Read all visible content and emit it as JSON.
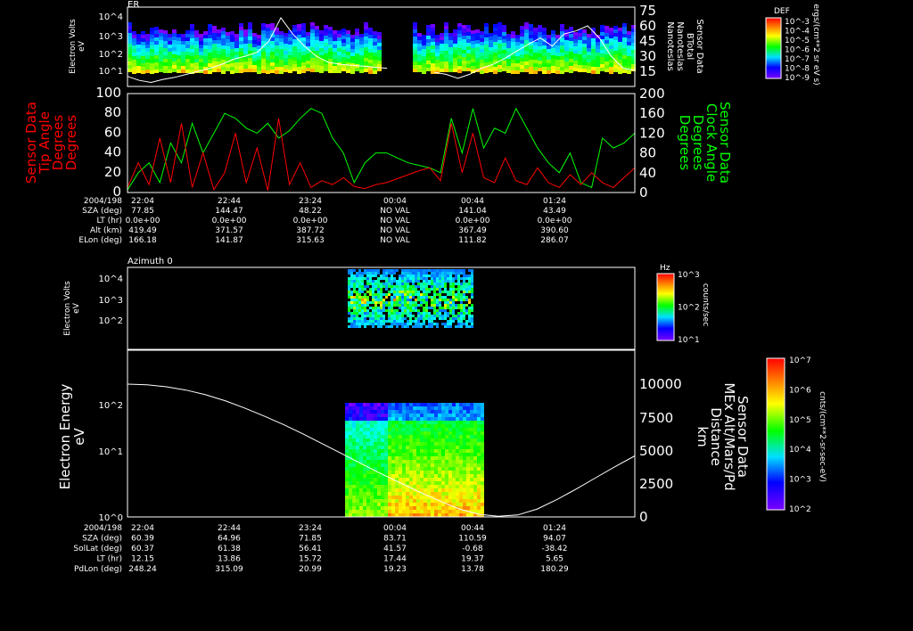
{
  "panel1": {
    "title": "ER",
    "ylabel": [
      "Electron Volts",
      "eV"
    ],
    "yticks": [
      "10^4",
      "10^3",
      "10^2",
      "10^1"
    ],
    "right_ticks": [
      "75",
      "60",
      "45",
      "30",
      "15"
    ],
    "right_label": [
      "Sensor Data",
      "BTotal",
      "Nanoteslas",
      "Nanoteslas"
    ],
    "colorbar": {
      "title": "DEF",
      "ticks": [
        "10^-3",
        "10^-4",
        "10^-5",
        "10^-6",
        "10^-7",
        "10^-8",
        "10^-9"
      ],
      "unit": "ergs/(cm**2 sr eV s)"
    },
    "btotal_nT": [
      10,
      6,
      4,
      7,
      9,
      12,
      15,
      18,
      22,
      27,
      30,
      34,
      45,
      68,
      52,
      40,
      30,
      24,
      22,
      21,
      20,
      19,
      18,
      null,
      null,
      null,
      14,
      12,
      8,
      12,
      18,
      22,
      28,
      35,
      42,
      48,
      40,
      52,
      55,
      60,
      48,
      30,
      18,
      16
    ]
  },
  "panel2": {
    "left_label": [
      "Sensor Data",
      "Tip Angle",
      "Degrees",
      "Degrees"
    ],
    "right_label": [
      "Sensor Data",
      "Clock Angle",
      "Degrees",
      "Degrees"
    ],
    "left_ticks": [
      "100",
      "80",
      "60",
      "40",
      "20",
      "0"
    ],
    "right_ticks": [
      "200",
      "160",
      "120",
      "80",
      "40",
      "0"
    ],
    "tip_deg": [
      5,
      30,
      8,
      55,
      10,
      70,
      5,
      40,
      3,
      20,
      60,
      10,
      45,
      2,
      75,
      8,
      30,
      5,
      12,
      8,
      15,
      6,
      4,
      8,
      10,
      14,
      18,
      22,
      25,
      12,
      70,
      20,
      60,
      15,
      10,
      35,
      12,
      8,
      25,
      10,
      5,
      18,
      8,
      20,
      10,
      5,
      15,
      25
    ],
    "clock_deg": [
      5,
      40,
      60,
      20,
      100,
      60,
      140,
      80,
      120,
      160,
      150,
      130,
      120,
      140,
      110,
      125,
      150,
      170,
      160,
      110,
      80,
      20,
      60,
      80,
      80,
      70,
      60,
      55,
      50,
      40,
      150,
      80,
      170,
      90,
      130,
      120,
      170,
      130,
      90,
      60,
      40,
      80,
      20,
      10,
      110,
      90,
      100,
      120
    ],
    "colors": {
      "tip": "#ff0000",
      "clock": "#00ff00"
    }
  },
  "table1": {
    "row_labels": [
      "2004/198",
      "SZA (deg)",
      "LT (hr)",
      "Alt (km)",
      "ELon (deg)"
    ],
    "columns": [
      [
        "22:04",
        "77.85",
        "0.0e+00",
        "419.49",
        "166.18"
      ],
      [
        "22:44",
        "144.47",
        "0.0e+00",
        "371.57",
        "141.87"
      ],
      [
        "23:24",
        "48.22",
        "0.0e+00",
        "387.72",
        "315.63"
      ],
      [
        "00:04",
        "NO VAL",
        "NO VAL",
        "NO VAL",
        "NO VAL"
      ],
      [
        "00:44",
        "141.04",
        "0.0e+00",
        "367.49",
        "111.82"
      ],
      [
        "01:24",
        "43.49",
        "0.0e+00",
        "390.60",
        "286.07"
      ]
    ]
  },
  "panel3": {
    "title": "Azimuth 0",
    "ylabel": [
      "Electron Volts",
      "eV"
    ],
    "yticks": [
      "10^4",
      "10^3",
      "10^2"
    ],
    "colorbar": {
      "title": "Hz",
      "ticks": [
        "10^3",
        "10^2",
        "10^1"
      ],
      "unit": "counts/sec"
    }
  },
  "panel4": {
    "ylabel": [
      "Electron Energy",
      "eV"
    ],
    "yticks": [
      "10^2",
      "10^1",
      "10^0"
    ],
    "right_ticks": [
      "10000",
      "7500",
      "5000",
      "2500",
      "0"
    ],
    "right_label": [
      "Sensor Data",
      "MEx Alt/Mars/Pd",
      "Distance",
      "km"
    ],
    "colorbar": {
      "ticks": [
        "10^7",
        "10^6",
        "10^5",
        "10^4",
        "10^3",
        "10^2"
      ],
      "unit": "cnts/(cm**2-sr-sec-eV)"
    },
    "altitude_km": [
      10000,
      9950,
      9800,
      9550,
      9200,
      8750,
      8200,
      7600,
      6950,
      6250,
      5500,
      4750,
      4000,
      3250,
      2550,
      1850,
      1200,
      600,
      200,
      50,
      150,
      600,
      1300,
      2100,
      2950,
      3800,
      4600
    ]
  },
  "table2": {
    "row_labels": [
      "2004/198",
      "SZA (deg)",
      "SolLat (deg)",
      "LT (hr)",
      "PdLon (deg)"
    ],
    "columns": [
      [
        "22:04",
        "60.39",
        "60.37",
        "12.15",
        "248.24"
      ],
      [
        "22:44",
        "64.96",
        "61.38",
        "13.86",
        "315.09"
      ],
      [
        "23:24",
        "71.85",
        "56.41",
        "15.72",
        "20.99"
      ],
      [
        "00:04",
        "83.71",
        "41.57",
        "17.44",
        "19.23"
      ],
      [
        "00:44",
        "110.59",
        "-0.68",
        "19.37",
        "13.78"
      ],
      [
        "01:24",
        "94.07",
        "-38.42",
        "5.65",
        "180.29"
      ]
    ]
  },
  "chart_data": [
    {
      "type": "heatmap",
      "title": "ER",
      "ylabel": "Electron Volts eV",
      "ylim": [
        1,
        20000
      ],
      "right_axis": "BTotal Nanoteslas",
      "right_ylim": [
        0,
        75
      ]
    },
    {
      "type": "line",
      "ylabel": "Tip Angle Degrees",
      "ylim": [
        0,
        100
      ],
      "right_ylabel": "Clock Angle Degrees",
      "right_ylim": [
        0,
        200
      ]
    },
    {
      "type": "heatmap",
      "title": "Azimuth 0",
      "ylabel": "Electron Volts eV"
    },
    {
      "type": "heatmap",
      "ylabel": "Electron Energy eV",
      "ylim": [
        1,
        300
      ],
      "right_ylabel": "MEx Alt/Mars/Pd Distance km",
      "right_ylim": [
        0,
        12000
      ]
    }
  ]
}
